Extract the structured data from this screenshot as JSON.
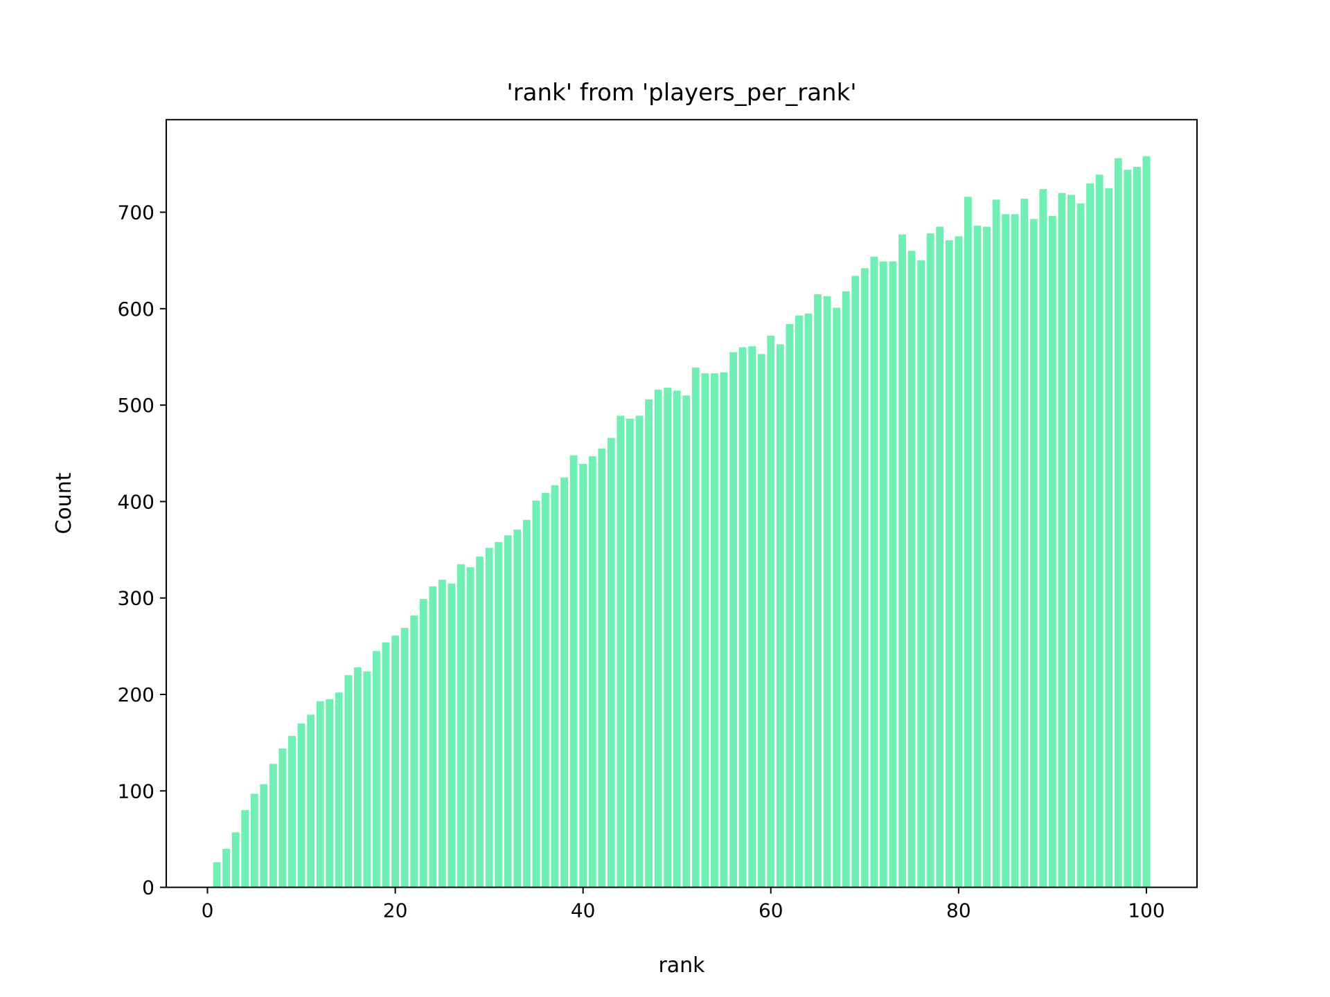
{
  "chart_data": {
    "type": "bar",
    "title": "'rank' from 'players_per_rank'",
    "xlabel": "rank",
    "ylabel": "Count",
    "xlim": [
      -4.39,
      105.39
    ],
    "ylim": [
      0,
      796
    ],
    "xticks": [
      0,
      20,
      40,
      60,
      80,
      100
    ],
    "yticks": [
      0,
      100,
      200,
      300,
      400,
      500,
      600,
      700
    ],
    "grid": false,
    "bar_color": "#6ef0b2",
    "x": [
      1,
      2,
      3,
      4,
      5,
      6,
      7,
      8,
      9,
      10,
      11,
      12,
      13,
      14,
      15,
      16,
      17,
      18,
      19,
      20,
      21,
      22,
      23,
      24,
      25,
      26,
      27,
      28,
      29,
      30,
      31,
      32,
      33,
      34,
      35,
      36,
      37,
      38,
      39,
      40,
      41,
      42,
      43,
      44,
      45,
      46,
      47,
      48,
      49,
      50,
      51,
      52,
      53,
      54,
      55,
      56,
      57,
      58,
      59,
      60,
      61,
      62,
      63,
      64,
      65,
      66,
      67,
      68,
      69,
      70,
      71,
      72,
      73,
      74,
      75,
      76,
      77,
      78,
      79,
      80,
      81,
      82,
      83,
      84,
      85,
      86,
      87,
      88,
      89,
      90,
      91,
      92,
      93,
      94,
      95,
      96,
      97,
      98,
      99,
      100
    ],
    "values": [
      26,
      40,
      57,
      80,
      97,
      107,
      128,
      144,
      157,
      170,
      179,
      193,
      195,
      202,
      220,
      228,
      224,
      245,
      254,
      261,
      269,
      282,
      299,
      312,
      319,
      315,
      335,
      332,
      343,
      352,
      358,
      365,
      371,
      381,
      401,
      409,
      417,
      425,
      448,
      439,
      447,
      455,
      466,
      489,
      486,
      489,
      506,
      516,
      518,
      515,
      510,
      539,
      533,
      533,
      534,
      555,
      560,
      561,
      553,
      572,
      563,
      584,
      593,
      595,
      615,
      613,
      601,
      618,
      634,
      642,
      654,
      649,
      649,
      677,
      660,
      650,
      678,
      685,
      671,
      675,
      716,
      686,
      685,
      713,
      698,
      698,
      714,
      693,
      724,
      696,
      720,
      718,
      709,
      730,
      739,
      725,
      756,
      744,
      747,
      758
    ]
  }
}
